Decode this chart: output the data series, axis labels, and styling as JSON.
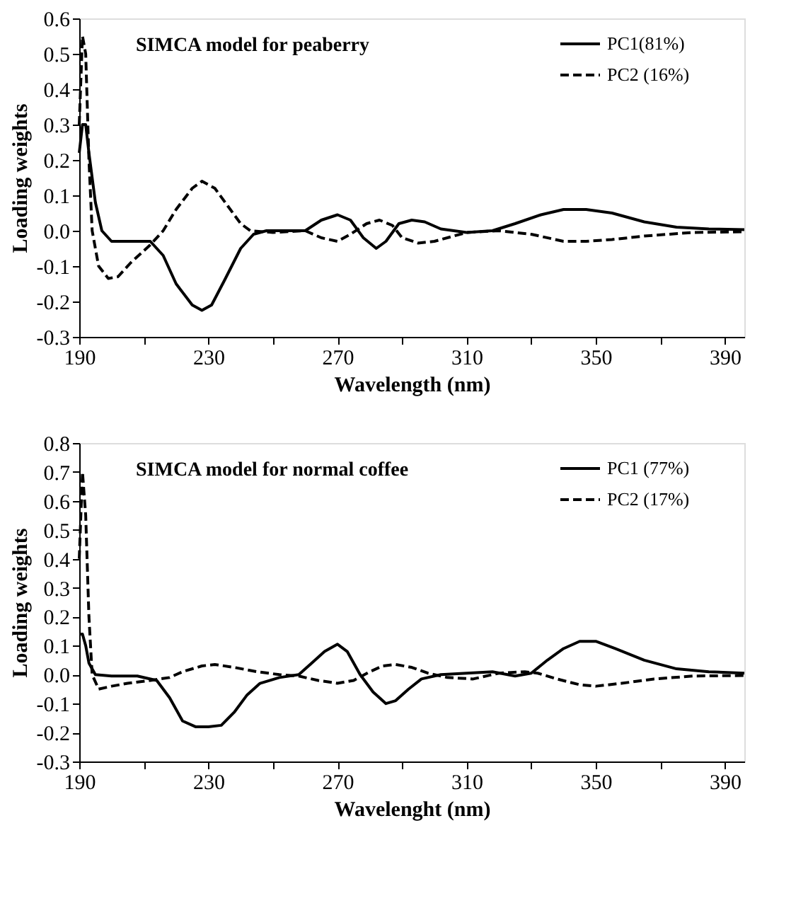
{
  "chart_data": [
    {
      "type": "line",
      "title": "SIMCA model for peaberry",
      "xlabel": "Wavelength (nm)",
      "ylabel": "Loading weights",
      "xlim": [
        190,
        396
      ],
      "xticks": [
        190,
        {
          "value": 210,
          "label": null
        },
        230,
        {
          "value": 250,
          "label": null
        },
        270,
        {
          "value": 290,
          "label": null
        },
        310,
        {
          "value": 330,
          "label": null
        },
        350,
        {
          "value": 370,
          "label": null
        },
        390
      ],
      "ylim": [
        -0.3,
        0.6
      ],
      "yticks": [
        {
          "value": -0.3,
          "label": "-0.3"
        },
        {
          "value": -0.2,
          "label": "-0.2"
        },
        {
          "value": -0.1,
          "label": "-0.1"
        },
        {
          "value": 0,
          "label": "0.0"
        },
        {
          "value": 0.1,
          "label": "0.1"
        },
        {
          "value": 0.2,
          "label": "0.2"
        },
        {
          "value": 0.3,
          "label": "0.3"
        },
        {
          "value": 0.4,
          "label": "0.4"
        },
        {
          "value": 0.5,
          "label": "0.5"
        },
        {
          "value": 0.6,
          "label": "0.6"
        }
      ],
      "grid": false,
      "legend": "top right",
      "series": [
        {
          "name": "PC1(81%)",
          "color": "#000000",
          "line_style": "solid",
          "x": [
            190,
            191,
            192,
            193,
            195,
            197,
            200,
            205,
            212,
            216,
            220,
            225,
            228,
            231,
            235,
            240,
            244,
            248,
            255,
            260,
            265,
            270,
            274,
            278,
            282,
            285,
            289,
            293,
            297,
            302,
            310,
            318,
            325,
            333,
            340,
            347,
            355,
            365,
            375,
            385,
            396
          ],
          "values": [
            0.22,
            0.3,
            0.3,
            0.22,
            0.08,
            0.0,
            -0.03,
            -0.03,
            -0.03,
            -0.07,
            -0.15,
            -0.21,
            -0.225,
            -0.21,
            -0.14,
            -0.05,
            -0.01,
            0.0,
            0.0,
            0.0,
            0.03,
            0.045,
            0.03,
            -0.02,
            -0.05,
            -0.03,
            0.02,
            0.03,
            0.025,
            0.005,
            -0.005,
            0.0,
            0.02,
            0.045,
            0.06,
            0.06,
            0.05,
            0.025,
            0.01,
            0.005,
            0.003
          ]
        },
        {
          "name": "PC2 (16%)",
          "color": "#000000",
          "line_style": "dashed",
          "x": [
            190,
            191,
            192,
            193,
            194,
            196,
            199,
            202,
            206,
            212,
            216,
            220,
            225,
            228,
            232,
            236,
            240,
            243,
            250,
            260,
            265,
            270,
            274,
            279,
            283,
            287,
            290,
            295,
            300,
            310,
            320,
            330,
            340,
            347,
            355,
            365,
            380,
            396
          ],
          "values": [
            0.3,
            0.55,
            0.5,
            0.2,
            0.0,
            -0.1,
            -0.135,
            -0.13,
            -0.09,
            -0.04,
            0.0,
            0.06,
            0.12,
            0.14,
            0.12,
            0.07,
            0.02,
            0.0,
            -0.005,
            0.0,
            -0.02,
            -0.03,
            -0.01,
            0.02,
            0.03,
            0.015,
            -0.02,
            -0.035,
            -0.03,
            -0.005,
            0.0,
            -0.01,
            -0.03,
            -0.03,
            -0.025,
            -0.015,
            -0.005,
            -0.003
          ]
        }
      ]
    },
    {
      "type": "line",
      "title": "SIMCA model for normal coffee",
      "xlabel": "Wavelenght (nm)",
      "ylabel": "Loading weights",
      "xlim": [
        190,
        396
      ],
      "xticks": [
        190,
        {
          "value": 210,
          "label": null
        },
        230,
        {
          "value": 250,
          "label": null
        },
        270,
        {
          "value": 290,
          "label": null
        },
        310,
        {
          "value": 330,
          "label": null
        },
        350,
        {
          "value": 370,
          "label": null
        },
        390
      ],
      "ylim": [
        -0.3,
        0.8
      ],
      "yticks": [
        {
          "value": -0.3,
          "label": "-0.3"
        },
        {
          "value": -0.2,
          "label": "-0.2"
        },
        {
          "value": -0.1,
          "label": "-0.1"
        },
        {
          "value": 0,
          "label": "0.0"
        },
        {
          "value": 0.1,
          "label": "0.1"
        },
        {
          "value": 0.2,
          "label": "0.2"
        },
        {
          "value": 0.3,
          "label": "0.3"
        },
        {
          "value": 0.4,
          "label": "0.4"
        },
        {
          "value": 0.5,
          "label": "0.5"
        },
        {
          "value": 0.6,
          "label": "0.6"
        },
        {
          "value": 0.7,
          "label": "0.7"
        },
        {
          "value": 0.8,
          "label": "0.8"
        }
      ],
      "grid": false,
      "legend": "top right",
      "series": [
        {
          "name": "PC1 (77%)",
          "color": "#000000",
          "line_style": "solid",
          "x": [
            190,
            191,
            192,
            193,
            195,
            200,
            208,
            214,
            218,
            222,
            226,
            230,
            234,
            238,
            242,
            246,
            252,
            258,
            262,
            266,
            270,
            273,
            277,
            281,
            285,
            288,
            292,
            296,
            302,
            310,
            318,
            325,
            330,
            335,
            340,
            345,
            350,
            356,
            365,
            375,
            385,
            396
          ],
          "values": [
            0.14,
            0.14,
            0.1,
            0.04,
            0.0,
            -0.005,
            -0.005,
            -0.02,
            -0.08,
            -0.16,
            -0.18,
            -0.18,
            -0.175,
            -0.13,
            -0.07,
            -0.03,
            -0.01,
            0.0,
            0.04,
            0.08,
            0.105,
            0.08,
            0.0,
            -0.06,
            -0.1,
            -0.09,
            -0.05,
            -0.015,
            0.0,
            0.005,
            0.01,
            -0.005,
            0.005,
            0.05,
            0.09,
            0.115,
            0.115,
            0.09,
            0.05,
            0.02,
            0.01,
            0.005
          ]
        },
        {
          "name": "PC2 (17%)",
          "color": "#000000",
          "line_style": "dashed",
          "x": [
            190,
            191,
            192,
            193,
            194,
            196,
            200,
            205,
            212,
            218,
            222,
            228,
            232,
            238,
            245,
            252,
            258,
            264,
            270,
            275,
            280,
            284,
            288,
            293,
            298,
            304,
            312,
            320,
            328,
            332,
            338,
            345,
            350,
            358,
            368,
            380,
            396
          ],
          "values": [
            0.4,
            0.7,
            0.55,
            0.2,
            0.0,
            -0.05,
            -0.04,
            -0.03,
            -0.02,
            -0.01,
            0.01,
            0.03,
            0.035,
            0.025,
            0.01,
            0.0,
            -0.005,
            -0.02,
            -0.03,
            -0.02,
            0.01,
            0.03,
            0.035,
            0.025,
            0.005,
            -0.01,
            -0.015,
            0.005,
            0.01,
            0.005,
            -0.015,
            -0.035,
            -0.04,
            -0.03,
            -0.015,
            -0.005,
            -0.003
          ]
        }
      ]
    }
  ]
}
